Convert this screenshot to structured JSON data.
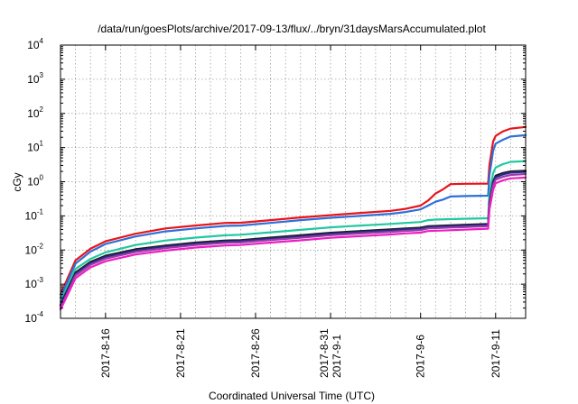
{
  "chart_data": {
    "type": "line",
    "title": "/data/run/goesPlots/archive/2017-09-13/flux/../bryn/31daysMarsAccumulated.plot",
    "xlabel": "Coordinated Universal Time (UTC)",
    "ylabel": "cGy",
    "yscale": "log",
    "ylim": [
      0.0001,
      10000
    ],
    "xlim": [
      "2017-08-13",
      "2017-09-13"
    ],
    "grid": true,
    "y_ticks": [
      {
        "value": 0.0001,
        "base": "10",
        "exp": "-4"
      },
      {
        "value": 0.001,
        "base": "10",
        "exp": "-3"
      },
      {
        "value": 0.01,
        "base": "10",
        "exp": "-2"
      },
      {
        "value": 0.1,
        "base": "10",
        "exp": "-1"
      },
      {
        "value": 1,
        "base": "10",
        "exp": "0"
      },
      {
        "value": 10,
        "base": "10",
        "exp": "1"
      },
      {
        "value": 100,
        "base": "10",
        "exp": "2"
      },
      {
        "value": 1000,
        "base": "10",
        "exp": "3"
      },
      {
        "value": 10000,
        "base": "10",
        "exp": "4"
      }
    ],
    "x_ticks": [
      {
        "date": "2017-08-16",
        "lines": [
          "2017-8-16"
        ]
      },
      {
        "date": "2017-08-21",
        "lines": [
          "2017-8-21"
        ]
      },
      {
        "date": "2017-08-26",
        "lines": [
          "2017-8-26"
        ]
      },
      {
        "date": "2017-08-31",
        "lines": [
          "2017-8-31",
          "2017-9-1"
        ]
      },
      {
        "date": "2017-09-06",
        "lines": [
          "2017-9-6"
        ]
      },
      {
        "date": "2017-09-11",
        "lines": [
          "2017-9-11"
        ]
      }
    ],
    "x_grid_dates": [
      "2017-08-14",
      "2017-08-15",
      "2017-08-16",
      "2017-08-17",
      "2017-08-18",
      "2017-08-19",
      "2017-08-20",
      "2017-08-21",
      "2017-08-22",
      "2017-08-23",
      "2017-08-24",
      "2017-08-25",
      "2017-08-26",
      "2017-08-27",
      "2017-08-28",
      "2017-08-29",
      "2017-08-30",
      "2017-08-31",
      "2017-09-01",
      "2017-09-02",
      "2017-09-03",
      "2017-09-04",
      "2017-09-05",
      "2017-09-06",
      "2017-09-07",
      "2017-09-08",
      "2017-09-09",
      "2017-09-10",
      "2017-09-11",
      "2017-09-12"
    ],
    "series": [
      {
        "color": "#e8141b",
        "points": [
          [
            "2017-08-13",
            0.0005
          ],
          [
            "2017-08-14",
            0.005
          ],
          [
            "2017-08-15",
            0.011
          ],
          [
            "2017-08-16",
            0.018
          ],
          [
            "2017-08-18",
            0.03
          ],
          [
            "2017-08-20",
            0.043
          ],
          [
            "2017-08-22",
            0.052
          ],
          [
            "2017-08-24",
            0.062
          ],
          [
            "2017-08-25",
            0.063
          ],
          [
            "2017-08-27",
            0.075
          ],
          [
            "2017-08-29",
            0.09
          ],
          [
            "2017-08-31",
            0.105
          ],
          [
            "2017-09-02",
            0.122
          ],
          [
            "2017-09-04",
            0.14
          ],
          [
            "2017-09-05",
            0.16
          ],
          [
            "2017-09-06",
            0.2
          ],
          [
            "2017-09-06 12:00",
            0.28
          ],
          [
            "2017-09-07",
            0.45
          ],
          [
            "2017-09-07 12:00",
            0.6
          ],
          [
            "2017-09-08",
            0.85
          ],
          [
            "2017-09-09",
            0.87
          ],
          [
            "2017-09-10 12:00",
            0.88
          ],
          [
            "2017-09-10 14:00",
            3.0
          ],
          [
            "2017-09-10 20:00",
            15.0
          ],
          [
            "2017-09-11",
            22.0
          ],
          [
            "2017-09-11 12:00",
            30.0
          ],
          [
            "2017-09-12",
            36.0
          ],
          [
            "2017-09-13",
            40.0
          ]
        ]
      },
      {
        "color": "#2f6fd7",
        "points": [
          [
            "2017-08-13",
            0.0004
          ],
          [
            "2017-08-14",
            0.004
          ],
          [
            "2017-08-15",
            0.009
          ],
          [
            "2017-08-16",
            0.015
          ],
          [
            "2017-08-18",
            0.025
          ],
          [
            "2017-08-20",
            0.035
          ],
          [
            "2017-08-22",
            0.043
          ],
          [
            "2017-08-24",
            0.051
          ],
          [
            "2017-08-25",
            0.052
          ],
          [
            "2017-08-27",
            0.062
          ],
          [
            "2017-08-29",
            0.075
          ],
          [
            "2017-08-31",
            0.088
          ],
          [
            "2017-09-02",
            0.1
          ],
          [
            "2017-09-04",
            0.115
          ],
          [
            "2017-09-05",
            0.13
          ],
          [
            "2017-09-06",
            0.155
          ],
          [
            "2017-09-06 12:00",
            0.2
          ],
          [
            "2017-09-07",
            0.26
          ],
          [
            "2017-09-07 12:00",
            0.3
          ],
          [
            "2017-09-08",
            0.37
          ],
          [
            "2017-09-09",
            0.38
          ],
          [
            "2017-09-10 12:00",
            0.39
          ],
          [
            "2017-09-10 14:00",
            1.5
          ],
          [
            "2017-09-10 20:00",
            8.0
          ],
          [
            "2017-09-11",
            13.0
          ],
          [
            "2017-09-11 12:00",
            17.0
          ],
          [
            "2017-09-12",
            21.0
          ],
          [
            "2017-09-13",
            23.0
          ]
        ]
      },
      {
        "color": "#21c8a0",
        "points": [
          [
            "2017-08-13",
            0.0003
          ],
          [
            "2017-08-14",
            0.0028
          ],
          [
            "2017-08-15",
            0.0055
          ],
          [
            "2017-08-16",
            0.0085
          ],
          [
            "2017-08-18",
            0.014
          ],
          [
            "2017-08-20",
            0.019
          ],
          [
            "2017-08-22",
            0.023
          ],
          [
            "2017-08-24",
            0.027
          ],
          [
            "2017-08-25",
            0.028
          ],
          [
            "2017-08-27",
            0.033
          ],
          [
            "2017-08-29",
            0.039
          ],
          [
            "2017-08-31",
            0.046
          ],
          [
            "2017-09-02",
            0.052
          ],
          [
            "2017-09-04",
            0.058
          ],
          [
            "2017-09-05",
            0.062
          ],
          [
            "2017-09-06",
            0.066
          ],
          [
            "2017-09-06 12:00",
            0.075
          ],
          [
            "2017-09-07",
            0.078
          ],
          [
            "2017-09-08",
            0.08
          ],
          [
            "2017-09-10 12:00",
            0.085
          ],
          [
            "2017-09-10 14:00",
            0.4
          ],
          [
            "2017-09-10 20:00",
            1.8
          ],
          [
            "2017-09-11",
            2.6
          ],
          [
            "2017-09-11 12:00",
            3.3
          ],
          [
            "2017-09-12",
            3.8
          ],
          [
            "2017-09-13",
            4.0
          ]
        ]
      },
      {
        "color": "#1c1c1c",
        "points": [
          [
            "2017-08-13",
            0.00025
          ],
          [
            "2017-08-14",
            0.0022
          ],
          [
            "2017-08-15",
            0.0045
          ],
          [
            "2017-08-16",
            0.0068
          ],
          [
            "2017-08-18",
            0.0105
          ],
          [
            "2017-08-20",
            0.0135
          ],
          [
            "2017-08-22",
            0.0165
          ],
          [
            "2017-08-24",
            0.019
          ],
          [
            "2017-08-25",
            0.0195
          ],
          [
            "2017-08-27",
            0.023
          ],
          [
            "2017-08-29",
            0.027
          ],
          [
            "2017-08-31",
            0.032
          ],
          [
            "2017-09-02",
            0.036
          ],
          [
            "2017-09-04",
            0.04
          ],
          [
            "2017-09-05",
            0.043
          ],
          [
            "2017-09-06",
            0.045
          ],
          [
            "2017-09-06 12:00",
            0.05
          ],
          [
            "2017-09-08",
            0.053
          ],
          [
            "2017-09-10 12:00",
            0.058
          ],
          [
            "2017-09-10 14:00",
            0.25
          ],
          [
            "2017-09-10 20:00",
            1.0
          ],
          [
            "2017-09-11",
            1.5
          ],
          [
            "2017-09-11 12:00",
            1.8
          ],
          [
            "2017-09-12",
            2.0
          ],
          [
            "2017-09-13",
            2.1
          ]
        ]
      },
      {
        "color": "#2b2a8c",
        "points": [
          [
            "2017-08-13",
            0.00023
          ],
          [
            "2017-08-14",
            0.002
          ],
          [
            "2017-08-15",
            0.0041
          ],
          [
            "2017-08-16",
            0.0062
          ],
          [
            "2017-08-18",
            0.0097
          ],
          [
            "2017-08-20",
            0.0125
          ],
          [
            "2017-08-22",
            0.0153
          ],
          [
            "2017-08-24",
            0.0178
          ],
          [
            "2017-08-25",
            0.0182
          ],
          [
            "2017-08-27",
            0.0215
          ],
          [
            "2017-08-29",
            0.025
          ],
          [
            "2017-08-31",
            0.0298
          ],
          [
            "2017-09-02",
            0.0335
          ],
          [
            "2017-09-04",
            0.0375
          ],
          [
            "2017-09-05",
            0.04
          ],
          [
            "2017-09-06",
            0.042
          ],
          [
            "2017-09-06 12:00",
            0.047
          ],
          [
            "2017-09-08",
            0.05
          ],
          [
            "2017-09-10 12:00",
            0.055
          ],
          [
            "2017-09-10 14:00",
            0.22
          ],
          [
            "2017-09-10 20:00",
            0.9
          ],
          [
            "2017-09-11",
            1.35
          ],
          [
            "2017-09-11 12:00",
            1.65
          ],
          [
            "2017-09-12",
            1.85
          ],
          [
            "2017-09-13",
            1.95
          ]
        ]
      },
      {
        "color": "#9a3ca8",
        "points": [
          [
            "2017-08-13",
            0.0002
          ],
          [
            "2017-08-14",
            0.0018
          ],
          [
            "2017-08-15",
            0.0037
          ],
          [
            "2017-08-16",
            0.0056
          ],
          [
            "2017-08-18",
            0.0088
          ],
          [
            "2017-08-20",
            0.0114
          ],
          [
            "2017-08-22",
            0.014
          ],
          [
            "2017-08-24",
            0.0162
          ],
          [
            "2017-08-25",
            0.0166
          ],
          [
            "2017-08-27",
            0.0196
          ],
          [
            "2017-08-29",
            0.0228
          ],
          [
            "2017-08-31",
            0.0272
          ],
          [
            "2017-09-02",
            0.0305
          ],
          [
            "2017-09-04",
            0.034
          ],
          [
            "2017-09-05",
            0.0365
          ],
          [
            "2017-09-06",
            0.0382
          ],
          [
            "2017-09-06 12:00",
            0.043
          ],
          [
            "2017-09-08",
            0.0455
          ],
          [
            "2017-09-10 12:00",
            0.05
          ],
          [
            "2017-09-10 14:00",
            0.19
          ],
          [
            "2017-09-10 20:00",
            0.75
          ],
          [
            "2017-09-11",
            1.15
          ],
          [
            "2017-09-11 12:00",
            1.4
          ],
          [
            "2017-09-12",
            1.58
          ],
          [
            "2017-09-13",
            1.68
          ]
        ]
      },
      {
        "color": "#ec1fc2",
        "points": [
          [
            "2017-08-13",
            0.00018
          ],
          [
            "2017-08-14",
            0.0015
          ],
          [
            "2017-08-15",
            0.0031
          ],
          [
            "2017-08-16",
            0.0047
          ],
          [
            "2017-08-18",
            0.0074
          ],
          [
            "2017-08-20",
            0.0096
          ],
          [
            "2017-08-22",
            0.0118
          ],
          [
            "2017-08-24",
            0.0136
          ],
          [
            "2017-08-25",
            0.014
          ],
          [
            "2017-08-27",
            0.0165
          ],
          [
            "2017-08-29",
            0.0192
          ],
          [
            "2017-08-31",
            0.0228
          ],
          [
            "2017-09-02",
            0.0256
          ],
          [
            "2017-09-04",
            0.0286
          ],
          [
            "2017-09-05",
            0.0307
          ],
          [
            "2017-09-06",
            0.0322
          ],
          [
            "2017-09-06 12:00",
            0.036
          ],
          [
            "2017-09-08",
            0.038
          ],
          [
            "2017-09-10 12:00",
            0.042
          ],
          [
            "2017-09-10 14:00",
            0.15
          ],
          [
            "2017-09-10 20:00",
            0.58
          ],
          [
            "2017-09-11",
            0.9
          ],
          [
            "2017-09-11 12:00",
            1.1
          ],
          [
            "2017-09-12",
            1.25
          ],
          [
            "2017-09-13",
            1.32
          ]
        ]
      }
    ]
  }
}
